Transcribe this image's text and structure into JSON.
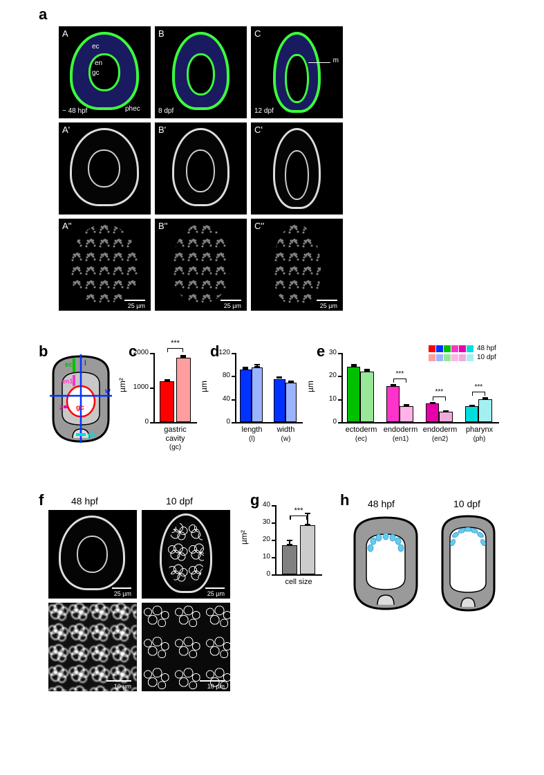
{
  "panels": {
    "a": {
      "label": "a"
    },
    "b": {
      "label": "b"
    },
    "c": {
      "label": "c"
    },
    "d": {
      "label": "d"
    },
    "e": {
      "label": "e"
    },
    "f": {
      "label": "f"
    },
    "g": {
      "label": "g"
    },
    "h": {
      "label": "h"
    }
  },
  "micrographs_a": {
    "A": {
      "tag": "A",
      "time": "~ 48 hpf",
      "annots": {
        "ec": "ec",
        "en": "en",
        "gc": "gc",
        "phec": "phec"
      }
    },
    "B": {
      "tag": "B",
      "time": "8 dpf"
    },
    "C": {
      "tag": "C",
      "time": "12 dpf",
      "annot_m": "m"
    },
    "A1": {
      "tag": "A'"
    },
    "B1": {
      "tag": "B'"
    },
    "C1": {
      "tag": "C'"
    },
    "A2": {
      "tag": "A''"
    },
    "B2": {
      "tag": "B''"
    },
    "C2": {
      "tag": "C''"
    },
    "scale": "25 µm"
  },
  "diagram_b": {
    "labels": {
      "ec": "ec",
      "l": "l",
      "en1": "en1",
      "en2": "2",
      "w": "w",
      "gc": "gc",
      "ph": "ph"
    },
    "colors": {
      "ec": "#00c000",
      "en": "#ff33cc",
      "gc": "#ff0000",
      "w": "#0033ff",
      "ph": "#00dddd"
    }
  },
  "chart_c": {
    "type": "bar",
    "title_y": "µm²",
    "ylim": [
      0,
      2000
    ],
    "yticks": [
      0,
      1000,
      2000
    ],
    "bars": [
      {
        "label": "gastric cavity",
        "sublabel": "(gc)",
        "value": 1180,
        "err": 60,
        "color": "#ff0000"
      },
      {
        "value": 1870,
        "err": 80,
        "color": "#ff9e9e"
      }
    ],
    "sig": "***"
  },
  "chart_d": {
    "type": "bar",
    "title_y": "µm",
    "ylim": [
      0,
      120
    ],
    "yticks": [
      0,
      40,
      80,
      120
    ],
    "groups": [
      {
        "label": "length",
        "sublabel": "(l)",
        "bars": [
          {
            "v": 91,
            "e": 5,
            "c": "#0033ff"
          },
          {
            "v": 95,
            "e": 6,
            "c": "#9bb4ff"
          }
        ]
      },
      {
        "label": "width",
        "sublabel": "(w)",
        "bars": [
          {
            "v": 75,
            "e": 4,
            "c": "#0033ff"
          },
          {
            "v": 68,
            "e": 4,
            "c": "#9bb4ff"
          }
        ]
      }
    ]
  },
  "chart_e": {
    "type": "bar",
    "title_y": "µm",
    "ylim": [
      0,
      30
    ],
    "yticks": [
      0,
      10,
      20,
      30
    ],
    "legend": [
      {
        "text": "48 hpf",
        "colors": [
          "#ff0000",
          "#0033ff",
          "#00c000",
          "#ff33cc",
          "#e600ac",
          "#00dddd"
        ]
      },
      {
        "text": "10 dpf",
        "colors": [
          "#ff9e9e",
          "#9bb4ff",
          "#99e699",
          "#ffb3e6",
          "#f2aadb",
          "#a3f0f0"
        ]
      }
    ],
    "groups": [
      {
        "label": "ectoderm",
        "sublabel": "(ec)",
        "bars": [
          {
            "v": 24,
            "e": 1.2,
            "c": "#00c000"
          },
          {
            "v": 22,
            "e": 1.2,
            "c": "#99e699"
          }
        ]
      },
      {
        "label": "endoderm",
        "sublabel": "(en1)",
        "sig": "***",
        "bars": [
          {
            "v": 15.5,
            "e": 1,
            "c": "#ff33cc"
          },
          {
            "v": 7,
            "e": 0.8,
            "c": "#ffb3e6"
          }
        ]
      },
      {
        "label": "endoderm",
        "sublabel": "(en2)",
        "sig": "***",
        "bars": [
          {
            "v": 8,
            "e": 0.6,
            "c": "#e600ac"
          },
          {
            "v": 4.6,
            "e": 0.5,
            "c": "#f2aadb"
          }
        ]
      },
      {
        "label": "pharynx",
        "sublabel": "(ph)",
        "sig": "***",
        "bars": [
          {
            "v": 6.8,
            "e": 0.6,
            "c": "#00dddd"
          },
          {
            "v": 10,
            "e": 0.7,
            "c": "#a3f0f0"
          }
        ]
      }
    ]
  },
  "panel_f": {
    "labels": {
      "t1": "48 hpf",
      "t2": "10 dpf"
    },
    "scale_top": "25 µm",
    "scale_bot": "10 µm"
  },
  "chart_g": {
    "type": "bar",
    "title_y": "µm²",
    "ylim": [
      0,
      40
    ],
    "yticks": [
      0,
      10,
      20,
      30,
      40
    ],
    "bars": [
      {
        "label": "cell size",
        "sublabel": "",
        "value": 17,
        "err": 3,
        "color": "#808080"
      },
      {
        "value": 28.5,
        "err": 7,
        "color": "#cccccc"
      }
    ],
    "sig": "***"
  },
  "panel_h": {
    "labels": {
      "t1": "48 hpf",
      "t2": "10 dpf"
    },
    "cell_color": "#66ccee",
    "body_color": "#9a9a9a"
  }
}
